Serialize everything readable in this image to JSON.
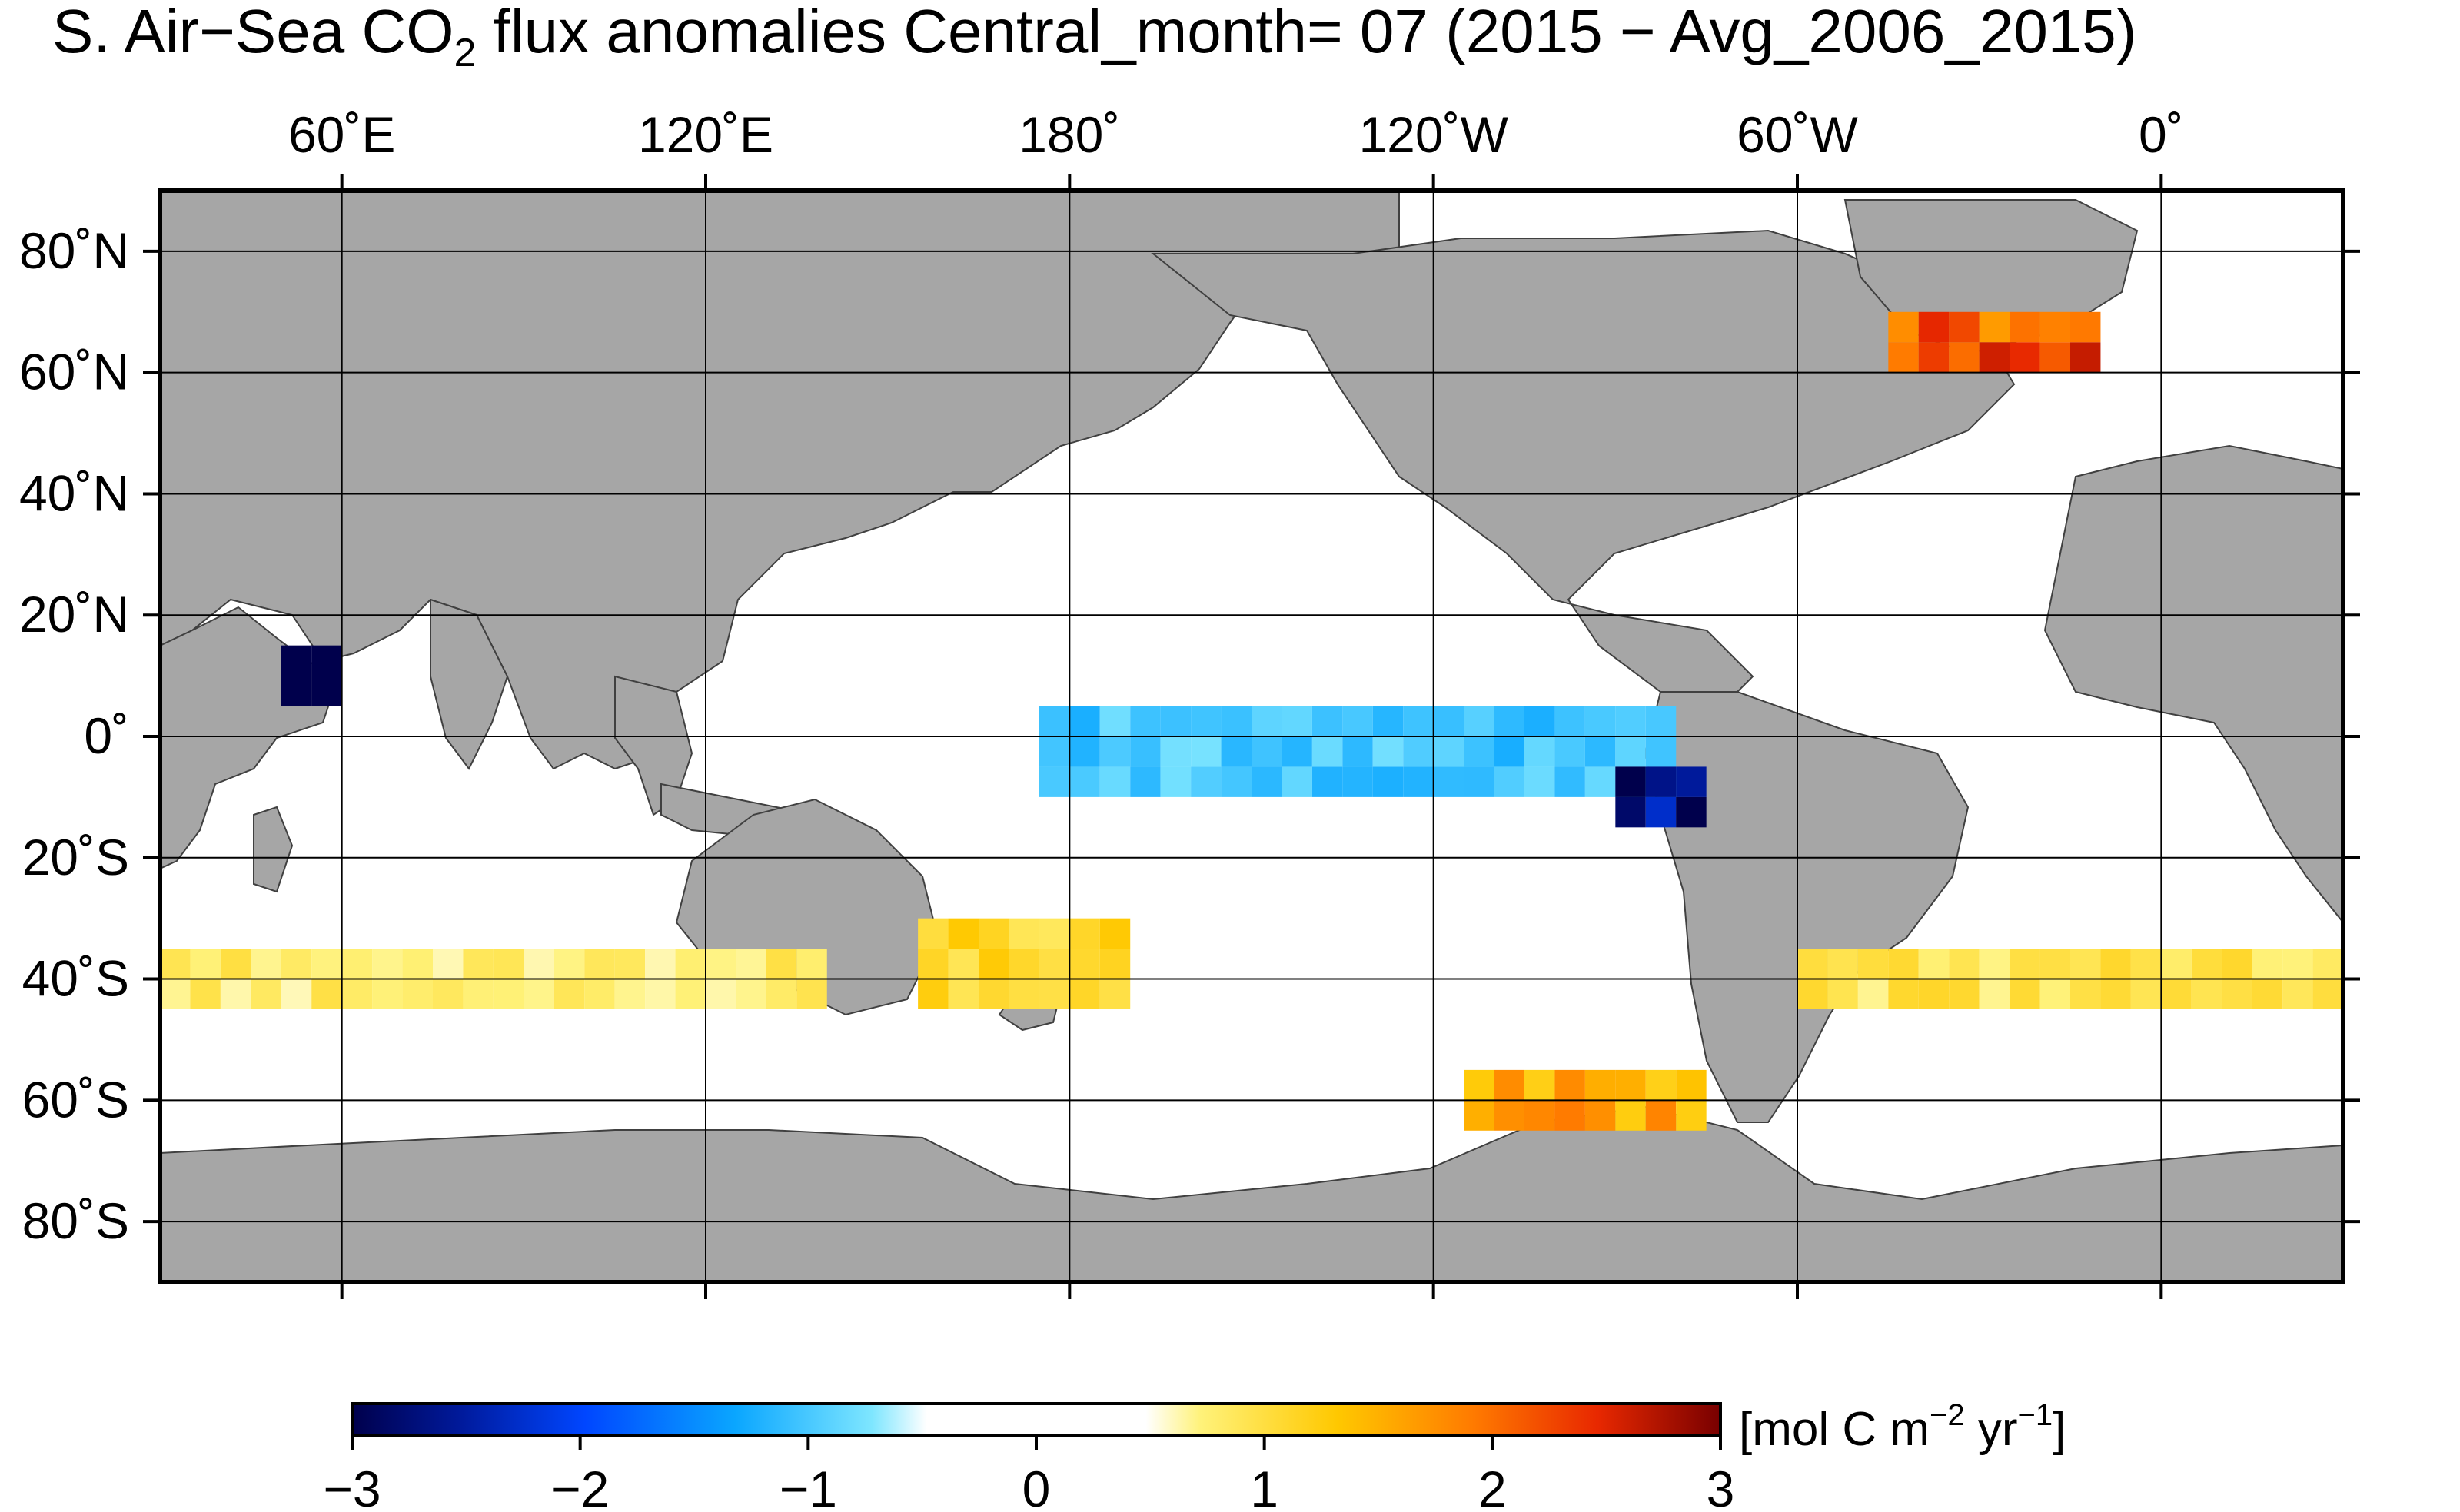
{
  "title": {
    "prefix": "S. Air−Sea CO",
    "subscript": "2",
    "suffix": " flux anomalies Central_month= 07 (2015 − Avg_2006_2015)"
  },
  "map": {
    "projection": "equirectangular",
    "lon_range": [
      30,
      390
    ],
    "lat_range": [
      -90,
      90
    ],
    "grid": true,
    "land_color": "#a6a6a6",
    "ocean_color": "#ffffff",
    "top_ticks": [
      {
        "label": "60˚E",
        "lon": 60
      },
      {
        "label": "120˚E",
        "lon": 120
      },
      {
        "label": "180˚",
        "lon": 180
      },
      {
        "label": "120˚W",
        "lon": 240
      },
      {
        "label": "60˚W",
        "lon": 300
      },
      {
        "label": "0˚",
        "lon": 360
      }
    ],
    "left_ticks": [
      {
        "label": "80˚N",
        "lat": 80
      },
      {
        "label": "60˚N",
        "lat": 60
      },
      {
        "label": "40˚N",
        "lat": 40
      },
      {
        "label": "20˚N",
        "lat": 20
      },
      {
        "label": "0˚",
        "lat": 0
      },
      {
        "label": "20˚S",
        "lat": -20
      },
      {
        "label": "40˚S",
        "lat": -40
      },
      {
        "label": "60˚S",
        "lat": -60
      },
      {
        "label": "80˚S",
        "lat": -80
      }
    ]
  },
  "colorbar": {
    "min": -3,
    "max": 3,
    "tick_labels": [
      "−3",
      "−2",
      "−1",
      "0",
      "1",
      "2",
      "3"
    ],
    "unit": {
      "base": "[mol C m",
      "exp1": "−2",
      "mid": " yr",
      "exp2": "−1",
      "end": "]"
    }
  },
  "chart_data": {
    "type": "heatmap",
    "variable": "Air-sea CO2 flux anomaly",
    "cell_size_deg": 5,
    "value_range": [
      -3,
      3
    ],
    "notable_regions": [
      {
        "lon_range": [
          175,
          280
        ],
        "lat_range": [
          -10,
          5
        ],
        "approx_value": -1.0
      },
      {
        "lon_range": [
          270,
          285
        ],
        "lat_range": [
          -15,
          -5
        ],
        "approx_value": -3.0
      },
      {
        "lon_range": [
          50,
          60
        ],
        "lat_range": [
          5,
          15
        ],
        "approx_value": -3.0
      },
      {
        "lon_range": [
          315,
          350
        ],
        "lat_range": [
          60,
          70
        ],
        "approx_value": 2.2
      },
      {
        "lon_range": [
          30,
          140
        ],
        "lat_range": [
          -45,
          -35
        ],
        "approx_value": 0.8
      },
      {
        "lon_range": [
          155,
          190
        ],
        "lat_range": [
          -45,
          -30
        ],
        "approx_value": 1.1
      },
      {
        "lon_range": [
          300,
          390
        ],
        "lat_range": [
          -45,
          -35
        ],
        "approx_value": 0.9
      },
      {
        "lon_range": [
          245,
          285
        ],
        "lat_range": [
          -65,
          -55
        ],
        "approx_value": 1.6
      }
    ]
  }
}
